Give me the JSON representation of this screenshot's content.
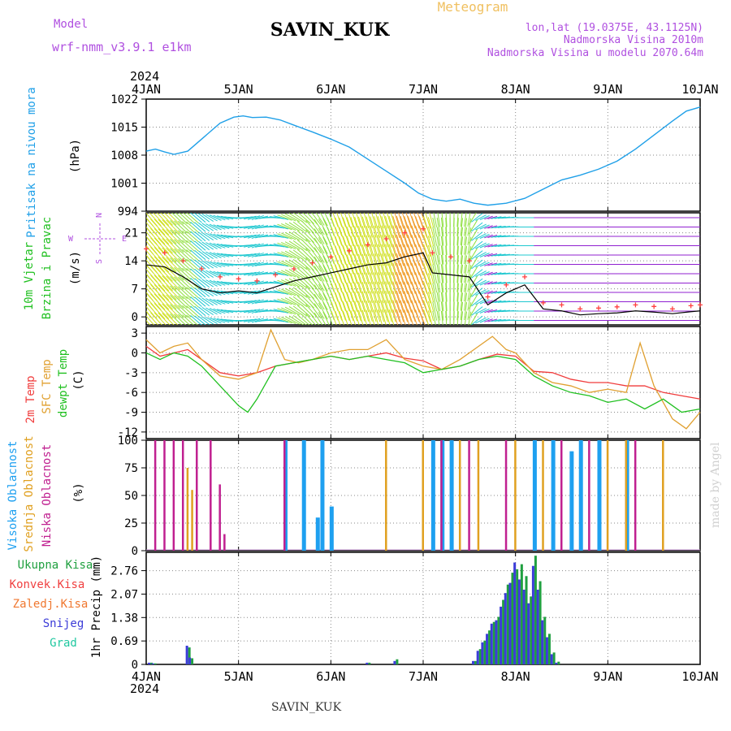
{
  "header": {
    "model_label": "Model",
    "model_name": "wrf-nmm_v3.9.1 e1km",
    "station": "SAVIN_KUK",
    "product": "Meteogram",
    "coords": "lon,lat (19.0375E, 43.1125N)",
    "elevation": "Nadmorska Visina 2010m",
    "model_elevation": "Nadmorska Visina u modelu 2070.64m",
    "credit": "made by Angel",
    "footer_station": "SAVIN_KUK",
    "year": "2024"
  },
  "colors": {
    "purple": "#b050e0",
    "orange_title": "#f0c060",
    "pressure": "#20a0e8",
    "temp2m": "#f03c3c",
    "sfc": "#e0a030",
    "dewpt": "#20c020",
    "high_cloud": "#1ea0f0",
    "mid_cloud": "#e0a020",
    "low_cloud": "#c02090",
    "precip_total": "#20a040",
    "precip_conv": "#f04040",
    "precip_frz": "#f07830",
    "snow": "#3c3cd8",
    "graupel": "#20c8a0"
  },
  "chart_data": [
    {
      "type": "line",
      "panel": "pressure",
      "title_lines": [
        "Pritisak na nivou mora"
      ],
      "unit": "(hPa)",
      "x_ticks": [
        "4JAN",
        "5JAN",
        "6JAN",
        "7JAN",
        "8JAN",
        "9JAN",
        "10JAN"
      ],
      "ylim": [
        994,
        1022
      ],
      "y_ticks": [
        994,
        1001,
        1008,
        1015,
        1022
      ],
      "grid": true,
      "series": [
        {
          "x": [
            0,
            0.1,
            0.2,
            0.3,
            0.45,
            0.6,
            0.8,
            0.95,
            1.05,
            1.15,
            1.3,
            1.45,
            1.6,
            1.8,
            2.0,
            2.2,
            2.4,
            2.6,
            2.8,
            2.95,
            3.1,
            3.25,
            3.4,
            3.55,
            3.7,
            3.9,
            4.1,
            4.3,
            4.5,
            4.7,
            4.9,
            5.1,
            5.3,
            5.5,
            5.7,
            5.85,
            6.0
          ],
          "values": [
            1009.0,
            1009.5,
            1008.8,
            1008.2,
            1009.0,
            1012.0,
            1016.0,
            1017.5,
            1017.8,
            1017.4,
            1017.5,
            1016.8,
            1015.5,
            1013.8,
            1012.0,
            1010.0,
            1007.0,
            1004.0,
            1001.0,
            998.5,
            997.0,
            996.5,
            997.0,
            996.0,
            995.5,
            996.0,
            997.2,
            999.5,
            1001.8,
            1003.0,
            1004.5,
            1006.5,
            1009.5,
            1013.0,
            1016.5,
            1019.0,
            1020.0
          ]
        }
      ]
    },
    {
      "type": "line",
      "panel": "wind",
      "title_lines": [
        "10m Vjetar",
        "Brzina i Pravac"
      ],
      "unit": "(m/s)",
      "x_ticks": [
        "4JAN",
        "5JAN",
        "6JAN",
        "7JAN",
        "8JAN",
        "9JAN",
        "10JAN"
      ],
      "ylim": [
        -2,
        26
      ],
      "y_ticks": [
        0,
        7,
        14,
        21
      ],
      "grid": true,
      "compass": {
        "north": "N",
        "west": "W",
        "east": "E",
        "south": "S"
      },
      "series": [
        {
          "name": "speed",
          "x": [
            0,
            0.2,
            0.4,
            0.6,
            0.8,
            1.0,
            1.2,
            1.4,
            1.6,
            1.8,
            2.0,
            2.2,
            2.4,
            2.6,
            2.8,
            3.0,
            3.1,
            3.3,
            3.5,
            3.7,
            3.9,
            4.1,
            4.3,
            4.5,
            4.7,
            4.9,
            5.1,
            5.3,
            5.5,
            5.7,
            5.9,
            6.0
          ],
          "values": [
            13,
            12.5,
            10,
            7,
            6,
            6.5,
            6,
            7.5,
            9,
            10,
            11,
            12,
            13,
            13.5,
            15,
            16,
            11,
            10.5,
            10,
            3,
            6,
            8,
            2,
            1.5,
            0.5,
            0.8,
            1,
            1.5,
            1.2,
            0.8,
            1.3,
            1.5
          ]
        },
        {
          "name": "gust",
          "x": [
            0,
            0.2,
            0.4,
            0.6,
            0.8,
            1.0,
            1.2,
            1.4,
            1.6,
            1.8,
            2.0,
            2.2,
            2.4,
            2.6,
            2.8,
            3.0,
            3.1,
            3.3,
            3.5,
            3.7,
            3.9,
            4.1,
            4.3,
            4.5,
            4.7,
            4.9,
            5.1,
            5.3,
            5.5,
            5.7,
            5.9,
            6.0
          ],
          "values": [
            17,
            16,
            14,
            12,
            10,
            9.5,
            9,
            10.5,
            12,
            13.5,
            15,
            16.5,
            18,
            19.5,
            21,
            22,
            16,
            15,
            14,
            5,
            8,
            10,
            3.5,
            3,
            2,
            2.2,
            2.5,
            3,
            2.6,
            2,
            2.8,
            3
          ]
        }
      ],
      "directions_deg": {
        "x": [
          0,
          0.6,
          1.2,
          1.5,
          2.0,
          2.5,
          3.0,
          3.3,
          3.5,
          3.6,
          3.8,
          4.0,
          4.5,
          5.0,
          5.5,
          6.0
        ],
        "values": [
          220,
          230,
          290,
          250,
          200,
          195,
          200,
          180,
          170,
          120,
          100,
          90,
          90,
          90,
          90,
          90
        ]
      }
    },
    {
      "type": "line",
      "panel": "temperature",
      "title_lines": [
        "2m Temp",
        "SFC Temp",
        "dewpt Temp"
      ],
      "unit": "(C)",
      "x_ticks": [
        "4JAN",
        "5JAN",
        "6JAN",
        "7JAN",
        "8JAN",
        "9JAN",
        "10JAN"
      ],
      "ylim": [
        -13,
        4
      ],
      "y_ticks": [
        -12,
        -9,
        -6,
        -3,
        0,
        3
      ],
      "grid": true,
      "series": [
        {
          "name": "2m Temp",
          "x": [
            0,
            0.15,
            0.3,
            0.45,
            0.6,
            0.8,
            1.0,
            1.2,
            1.4,
            1.6,
            1.8,
            2.0,
            2.2,
            2.4,
            2.6,
            2.8,
            3.0,
            3.2,
            3.4,
            3.6,
            3.8,
            4.0,
            4.2,
            4.4,
            4.6,
            4.8,
            5.0,
            5.2,
            5.4,
            5.6,
            5.8,
            6.0
          ],
          "values": [
            1,
            -0.5,
            0,
            0.5,
            -1,
            -3,
            -3.5,
            -3,
            -2,
            -1.5,
            -1,
            -0.5,
            -1,
            -0.5,
            0,
            -0.8,
            -1.2,
            -2.5,
            -2,
            -1,
            -0.2,
            -0.5,
            -2.8,
            -3,
            -4,
            -4.5,
            -4.5,
            -5,
            -5,
            -6,
            -6.5,
            -7
          ]
        },
        {
          "name": "SFC Temp",
          "x": [
            0,
            0.15,
            0.3,
            0.45,
            0.6,
            0.8,
            1.0,
            1.2,
            1.35,
            1.5,
            1.65,
            1.8,
            2.0,
            2.2,
            2.4,
            2.6,
            2.8,
            3.0,
            3.2,
            3.4,
            3.6,
            3.75,
            3.9,
            4.0,
            4.2,
            4.4,
            4.6,
            4.8,
            5.0,
            5.2,
            5.35,
            5.5,
            5.7,
            5.85,
            6.0
          ],
          "values": [
            2,
            0,
            1,
            1.5,
            -1,
            -3.5,
            -4,
            -3,
            3.5,
            -1,
            -1.5,
            -1,
            0,
            0.5,
            0.5,
            2,
            -1,
            -2,
            -2.5,
            -1,
            1,
            2.5,
            0.5,
            0,
            -3,
            -4.5,
            -5,
            -6,
            -5.5,
            -6,
            1.5,
            -5,
            -10,
            -11.5,
            -9
          ]
        },
        {
          "name": "dewpt Temp",
          "x": [
            0,
            0.15,
            0.3,
            0.45,
            0.6,
            0.8,
            1.0,
            1.1,
            1.2,
            1.4,
            1.6,
            1.8,
            2.0,
            2.2,
            2.4,
            2.6,
            2.8,
            3.0,
            3.2,
            3.4,
            3.6,
            3.8,
            4.0,
            4.2,
            4.4,
            4.6,
            4.8,
            5.0,
            5.2,
            5.4,
            5.6,
            5.8,
            6.0
          ],
          "values": [
            0,
            -1,
            0,
            -0.5,
            -2,
            -5,
            -8,
            -9,
            -7,
            -2,
            -1.5,
            -1,
            -0.5,
            -1,
            -0.5,
            -1,
            -1.5,
            -3,
            -2.5,
            -2,
            -1,
            -0.5,
            -1,
            -3.5,
            -5,
            -6,
            -6.5,
            -7.5,
            -7,
            -8.5,
            -7,
            -9,
            -8.5
          ]
        }
      ]
    },
    {
      "type": "bar",
      "panel": "clouds",
      "title_lines": [
        "Visoka Oblacnost",
        "Srednja Oblacnost",
        "Niska Oblacnost"
      ],
      "unit": "(%)",
      "x_ticks": [
        "4JAN",
        "5JAN",
        "6JAN",
        "7JAN",
        "8JAN",
        "9JAN",
        "10JAN"
      ],
      "ylim": [
        0,
        100
      ],
      "y_ticks": [
        0,
        25,
        50,
        75,
        100
      ],
      "grid": true,
      "series": [
        {
          "name": "Visoka Oblacnost",
          "x": [
            1.5,
            1.7,
            1.85,
            1.9,
            2.0,
            3.1,
            3.2,
            3.3,
            4.2,
            4.4,
            4.6,
            4.7,
            4.9,
            5.2
          ],
          "values": [
            100,
            100,
            30,
            100,
            40,
            100,
            100,
            100,
            100,
            100,
            90,
            100,
            100,
            100
          ]
        },
        {
          "name": "Srednja Oblacnost",
          "x": [
            0.45,
            0.5,
            1.5,
            2.6,
            3.0,
            3.4,
            3.6,
            4.0,
            4.3,
            5.0,
            5.2,
            5.6
          ],
          "values": [
            75,
            55,
            100,
            100,
            100,
            100,
            100,
            100,
            100,
            100,
            100,
            100
          ]
        },
        {
          "name": "Niska Oblacnost",
          "x": [
            0.1,
            0.2,
            0.3,
            0.4,
            0.55,
            0.7,
            0.8,
            0.85,
            1.5,
            3.2,
            3.5,
            3.9,
            4.5,
            4.8,
            5.3
          ],
          "values": [
            100,
            100,
            100,
            100,
            100,
            100,
            60,
            15,
            100,
            100,
            100,
            100,
            100,
            100,
            100
          ]
        }
      ]
    },
    {
      "type": "bar",
      "panel": "precipitation",
      "title_lines": [
        "Ukupna Kisa",
        "Konvek.Kisa",
        "Zaledj.Kisa",
        "Snijeg",
        "Grad"
      ],
      "unit": "1hr Precip (mm)",
      "x_ticks": [
        "4JAN",
        "5JAN",
        "6JAN",
        "7JAN",
        "8JAN",
        "9JAN",
        "10JAN"
      ],
      "y_ticks": [
        0,
        0.69,
        1.38,
        2.07,
        2.76
      ],
      "ylim": [
        0,
        3.3
      ],
      "grid": true,
      "series": [
        {
          "name": "Snijeg",
          "x": [
            0.04,
            0.08,
            0.45,
            0.48,
            2.4,
            2.7,
            3.55,
            3.6,
            3.65,
            3.7,
            3.75,
            3.8,
            3.85,
            3.9,
            3.95,
            4.0,
            4.05,
            4.1,
            4.15,
            4.2,
            4.25,
            4.3,
            4.35,
            4.4,
            4.45
          ],
          "values": [
            0.05,
            0.03,
            0.55,
            0.2,
            0.05,
            0.1,
            0.1,
            0.4,
            0.65,
            0.9,
            1.2,
            1.3,
            1.7,
            2.1,
            2.4,
            3.0,
            2.5,
            2.2,
            1.8,
            2.9,
            2.2,
            1.3,
            0.8,
            0.3,
            0.05
          ]
        },
        {
          "name": "Ukupna Kisa",
          "x": [
            0.04,
            0.08,
            0.45,
            0.48,
            2.4,
            2.7,
            3.55,
            3.6,
            3.65,
            3.7,
            3.75,
            3.8,
            3.85,
            3.9,
            3.95,
            4.0,
            4.05,
            4.1,
            4.15,
            4.2,
            4.25,
            4.3,
            4.35,
            4.4,
            4.45
          ],
          "values": [
            0.05,
            0.03,
            0.5,
            0.18,
            0.05,
            0.15,
            0.1,
            0.45,
            0.7,
            1.0,
            1.25,
            1.4,
            1.9,
            2.35,
            2.7,
            2.8,
            2.95,
            2.6,
            2.0,
            3.2,
            2.45,
            1.4,
            0.9,
            0.35,
            0.08
          ]
        }
      ]
    }
  ]
}
